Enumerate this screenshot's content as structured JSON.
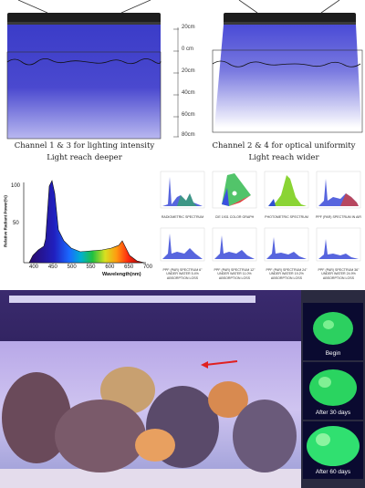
{
  "top_section": {
    "left_caption": [
      "Channel 1 & 3 for lighting intensity",
      "Light reach deeper"
    ],
    "right_caption": [
      "Channel 2 & 4 for optical uniformity",
      "Light reach wider"
    ],
    "depth_scale": [
      "20cm",
      "0 cm",
      "20cm",
      "40cm",
      "60cm",
      "80cm"
    ]
  },
  "spectrum_chart": {
    "ylabel": "Relative Radiant Power(%)",
    "xlabel": "Wavelength(nm)",
    "y_ticks": [
      "100",
      "50"
    ],
    "x_ticks": [
      "400",
      "450",
      "500",
      "550",
      "600",
      "650",
      "700"
    ]
  },
  "thumbnails": [
    {
      "label": "RADIOMETRIC SPECTRUM"
    },
    {
      "label": "CIE 1931 COLOR GRAPH"
    },
    {
      "label": "PHOTOMETRIC SPECTRUM"
    },
    {
      "label": "PPF (PAR) SPECTRUM IN AIR"
    },
    {
      "label": "PPF (PAR) SPECTRUM 6\" UNDER WATER 5.4% ABSORPTION LOSS"
    },
    {
      "label": "PPF (PAR) SPECTRUM 12\" UNDER WATER 11.0% ABSORPTION LOSS"
    },
    {
      "label": "PPF (PAR) SPECTRUM 24\" UNDER WATER 19.2% ABSORPTION LOSS"
    },
    {
      "label": "PPF (PAR) SPECTRUM 36\" UNDER WATER 24.9% ABSORPTION LOSS"
    }
  ],
  "coral_panels": [
    {
      "label": "Begin"
    },
    {
      "label": "After 30 days"
    },
    {
      "label": "After 60 days"
    }
  ]
}
